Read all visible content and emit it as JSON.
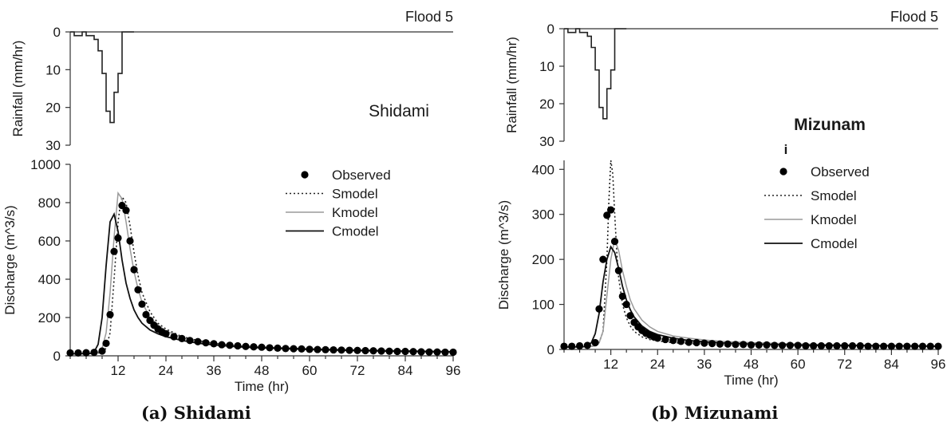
{
  "chart_data": [
    {
      "type": "line",
      "caption": "(a) Shidami",
      "flood_label": "Flood 5",
      "station_label": "Shidami",
      "rainfall": {
        "ylabel": "Rainfall (mm/hr)",
        "ylim": [
          0,
          30
        ],
        "yticks": [
          0,
          10,
          20,
          30
        ],
        "inverted": true,
        "style": "step",
        "values": [
          0,
          1,
          1,
          0,
          1,
          1,
          2,
          5,
          11,
          21,
          24,
          16,
          11,
          0,
          0,
          0
        ]
      },
      "discharge": {
        "ylabel": "Discharge (m^3/s)",
        "xlabel": "Time (hr)",
        "ylim": [
          0,
          1000
        ],
        "yticks": [
          0,
          200,
          400,
          600,
          800,
          1000
        ],
        "xlim": [
          0,
          96
        ],
        "xticks": [
          12,
          24,
          36,
          48,
          60,
          72,
          84,
          96
        ],
        "legend_position": "top-right",
        "series": [
          {
            "name": "Observed",
            "style": "dots",
            "x": [
              0,
              2,
              4,
              6,
              8,
              9,
              10,
              11,
              12,
              13,
              14,
              15,
              16,
              17,
              18,
              19,
              20,
              21,
              22,
              23,
              24,
              26,
              28,
              30,
              32,
              34,
              36,
              38,
              40,
              42,
              44,
              46,
              48,
              50,
              52,
              54,
              56,
              58,
              60,
              62,
              64,
              66,
              68,
              70,
              72,
              74,
              76,
              78,
              80,
              82,
              84,
              86,
              88,
              90,
              92,
              94,
              96
            ],
            "y": [
              15,
              15,
              16,
              18,
              25,
              65,
              215,
              545,
              615,
              785,
              760,
              600,
              450,
              345,
              270,
              215,
              185,
              160,
              140,
              125,
              115,
              100,
              90,
              80,
              74,
              68,
              63,
              58,
              55,
              52,
              49,
              47,
              45,
              42,
              40,
              38,
              37,
              36,
              34,
              33,
              32,
              31,
              30,
              29,
              28,
              27,
              26,
              25,
              24,
              23,
              23,
              22,
              21,
              20,
              20,
              19,
              19
            ]
          },
          {
            "name": "Smodel",
            "style": "dotted",
            "x": [
              0,
              6,
              8,
              9,
              10,
              11,
              12,
              12.5,
              13,
              14,
              15,
              16,
              17,
              18,
              20,
              22,
              24,
              28,
              32,
              36,
              42,
              48,
              60,
              72,
              84,
              96
            ],
            "y": [
              10,
              12,
              18,
              40,
              120,
              400,
              700,
              780,
              830,
              800,
              680,
              540,
              420,
              330,
              230,
              170,
              140,
              100,
              80,
              65,
              52,
              45,
              36,
              30,
              26,
              22
            ]
          },
          {
            "name": "Kmodel",
            "style": "light",
            "x": [
              0,
              6,
              7,
              8,
              9,
              10,
              11,
              12,
              13,
              14,
              15,
              16,
              17,
              18,
              20,
              22,
              24,
              28,
              32,
              36,
              42,
              48,
              60,
              72,
              84,
              96
            ],
            "y": [
              10,
              12,
              18,
              40,
              120,
              330,
              620,
              850,
              820,
              700,
              560,
              440,
              350,
              280,
              200,
              160,
              130,
              95,
              75,
              62,
              50,
              42,
              33,
              27,
              23,
              20
            ]
          },
          {
            "name": "Cmodel",
            "style": "solid",
            "x": [
              0,
              5,
              6,
              7,
              8,
              9,
              10,
              11,
              12,
              13,
              14,
              15,
              16,
              17,
              18,
              20,
              22,
              24,
              28,
              32,
              36,
              42,
              48,
              60,
              72,
              84,
              96
            ],
            "y": [
              10,
              12,
              20,
              60,
              200,
              470,
              700,
              740,
              650,
              500,
              380,
              300,
              240,
              200,
              170,
              135,
              115,
              100,
              80,
              66,
              57,
              47,
              41,
              33,
              27,
              23,
              20
            ]
          }
        ]
      }
    },
    {
      "type": "line",
      "caption": "(b) Mizunami",
      "flood_label": "Flood 5",
      "station_label": "Mizunam i",
      "rainfall": {
        "ylabel": "Rainfall (mm/hr)",
        "ylim": [
          0,
          30
        ],
        "yticks": [
          0,
          10,
          20,
          30
        ],
        "inverted": true,
        "style": "step",
        "values": [
          0,
          1,
          1,
          0,
          1,
          1,
          2,
          5,
          11,
          21,
          24,
          16,
          11,
          0,
          0,
          0
        ]
      },
      "discharge": {
        "ylabel": "Discharge (m^3/s)",
        "xlabel": "Time (hr)",
        "ylim": [
          0,
          420
        ],
        "yticks": [
          0,
          100,
          200,
          300,
          400
        ],
        "xlim": [
          0,
          96
        ],
        "xticks": [
          12,
          24,
          36,
          48,
          60,
          72,
          84,
          96
        ],
        "legend_position": "top-right",
        "series": [
          {
            "name": "Observed",
            "style": "dots",
            "x": [
              0,
              2,
              4,
              6,
              8,
              9,
              10,
              11,
              12,
              13,
              14,
              15,
              16,
              17,
              18,
              19,
              20,
              21,
              22,
              23,
              24,
              26,
              28,
              30,
              32,
              34,
              36,
              38,
              40,
              42,
              44,
              46,
              48,
              50,
              52,
              54,
              56,
              58,
              60,
              62,
              64,
              66,
              68,
              70,
              72,
              74,
              76,
              78,
              80,
              82,
              84,
              86,
              88,
              90,
              92,
              94,
              96
            ],
            "y": [
              7,
              7,
              8,
              9,
              15,
              90,
              200,
              298,
              310,
              240,
              175,
              118,
              100,
              75,
              60,
              50,
              42,
              36,
              32,
              28,
              25,
              22,
              20,
              18,
              16,
              15,
              14,
              13,
              12,
              12,
              11,
              11,
              10,
              10,
              10,
              9,
              9,
              9,
              9,
              8,
              8,
              8,
              8,
              8,
              8,
              8,
              8,
              7,
              7,
              7,
              7,
              7,
              7,
              7,
              7,
              7,
              7
            ]
          },
          {
            "name": "Smodel",
            "style": "dotted",
            "x": [
              0,
              6,
              8,
              9,
              10,
              11,
              11.5,
              12,
              12.5,
              13,
              13.5,
              14,
              15,
              16,
              17,
              18,
              20,
              22,
              24,
              28,
              32,
              36,
              48,
              60,
              72,
              84,
              96
            ],
            "y": [
              5,
              6,
              8,
              15,
              40,
              200,
              330,
              420,
              390,
              300,
              220,
              160,
              100,
              70,
              52,
              40,
              28,
              22,
              19,
              15,
              13,
              12,
              10,
              9,
              8,
              7,
              7
            ]
          },
          {
            "name": "Kmodel",
            "style": "light",
            "x": [
              0,
              6,
              8,
              9,
              10,
              11,
              12,
              13,
              14,
              15,
              16,
              17,
              18,
              20,
              22,
              24,
              28,
              32,
              36,
              42,
              48,
              60,
              72,
              84,
              96
            ],
            "y": [
              5,
              6,
              8,
              15,
              40,
              120,
              200,
              245,
              220,
              175,
              140,
              110,
              90,
              65,
              50,
              40,
              30,
              25,
              21,
              17,
              15,
              12,
              10,
              9,
              8
            ]
          },
          {
            "name": "Cmodel",
            "style": "solid",
            "x": [
              0,
              5,
              6,
              7,
              8,
              9,
              10,
              11,
              12,
              13,
              14,
              15,
              16,
              17,
              18,
              20,
              22,
              24,
              28,
              32,
              36,
              42,
              48,
              60,
              72,
              84,
              96
            ],
            "y": [
              5,
              6,
              8,
              15,
              35,
              80,
              150,
              200,
              228,
              215,
              180,
              140,
              110,
              88,
              72,
              52,
              40,
              33,
              25,
              20,
              17,
              14,
              12,
              10,
              9,
              8,
              7
            ]
          }
        ]
      }
    }
  ]
}
